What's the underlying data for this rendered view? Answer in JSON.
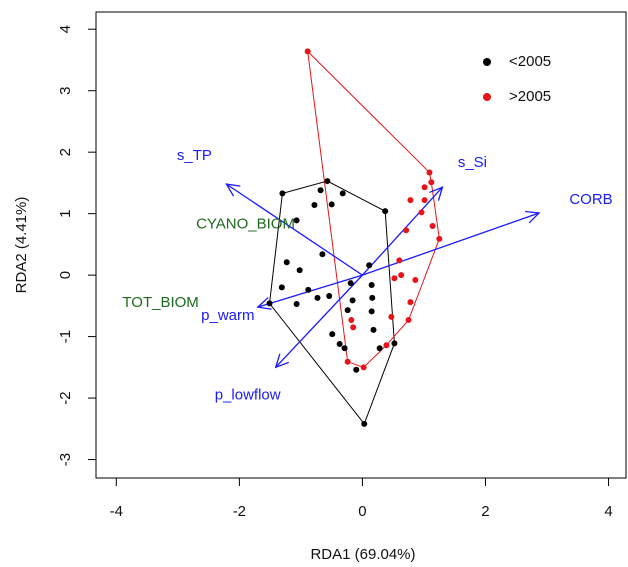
{
  "chart_data": {
    "type": "biplot",
    "x_label": "RDA1 (69.04%)",
    "y_label": "RDA2 (4.41%)",
    "xlim": [
      -4.33,
      4.3
    ],
    "ylim": [
      -3.3,
      4.28
    ],
    "xticks": [
      -4,
      -2,
      0,
      2,
      4
    ],
    "yticks": [
      -3,
      -2,
      -1,
      0,
      1,
      2,
      3,
      4
    ],
    "legend": "top-right",
    "series": [
      {
        "name": "<2005",
        "color": "#000000",
        "x": [
          -1.3,
          -0.57,
          -0.68,
          -0.32,
          -0.78,
          -0.5,
          -1.07,
          -1.23,
          -1.02,
          -1.31,
          -0.88,
          -0.73,
          -0.54,
          -0.19,
          -0.16,
          -0.24,
          -1.07,
          -1.51,
          -0.65,
          -0.49,
          -0.37,
          -0.29,
          0.11,
          0.15,
          0.16,
          0.15,
          0.18,
          0.28,
          0.52,
          0.37,
          -0.1,
          0.03
        ],
        "values": [
          1.33,
          1.53,
          1.38,
          1.33,
          1.14,
          1.15,
          0.89,
          0.21,
          0.08,
          -0.2,
          -0.24,
          -0.37,
          -0.34,
          -0.13,
          -0.41,
          -0.57,
          -0.47,
          -0.46,
          0.34,
          -0.96,
          -1.12,
          -1.19,
          0.16,
          -0.16,
          -0.37,
          -0.59,
          -0.89,
          -1.19,
          -1.11,
          1.04,
          -1.54,
          -2.42
        ]
      },
      {
        "name": ">2005",
        "color": "#e8141a",
        "x": [
          -0.89,
          1.09,
          1.12,
          1.01,
          0.78,
          1.01,
          0.96,
          1.14,
          1.25,
          0.71,
          0.6,
          0.52,
          0.63,
          0.86,
          0.78,
          0.75,
          0.47,
          -0.18,
          -0.15,
          -0.24,
          0.02,
          0.39
        ],
        "values": [
          3.64,
          1.67,
          1.51,
          1.43,
          1.22,
          1.22,
          1.02,
          0.8,
          0.59,
          0.73,
          0.24,
          -0.05,
          0.0,
          -0.08,
          -0.44,
          -0.73,
          -0.68,
          -0.73,
          -0.85,
          -1.41,
          -1.5,
          -1.14
        ]
      }
    ],
    "arrows": [
      {
        "label": "s_TP",
        "x": -2.21,
        "y": 1.48
      },
      {
        "label": "s_Si",
        "x": 1.3,
        "y": 1.43
      },
      {
        "label": "CORB",
        "x": 2.87,
        "y": 1.01
      },
      {
        "label": "p_warm",
        "x": -1.7,
        "y": -0.52
      },
      {
        "label": "p_lowflow",
        "x": -1.41,
        "y": -1.5
      }
    ],
    "arrow_color": "#1a1aff",
    "annotations": [
      {
        "text": "CYANO_BIOM",
        "x": -1.9,
        "y": 0.82
      },
      {
        "text": "TOT_BIOM",
        "x": -3.28,
        "y": -0.45
      }
    ],
    "annotation_color": "#1e6b1e"
  }
}
